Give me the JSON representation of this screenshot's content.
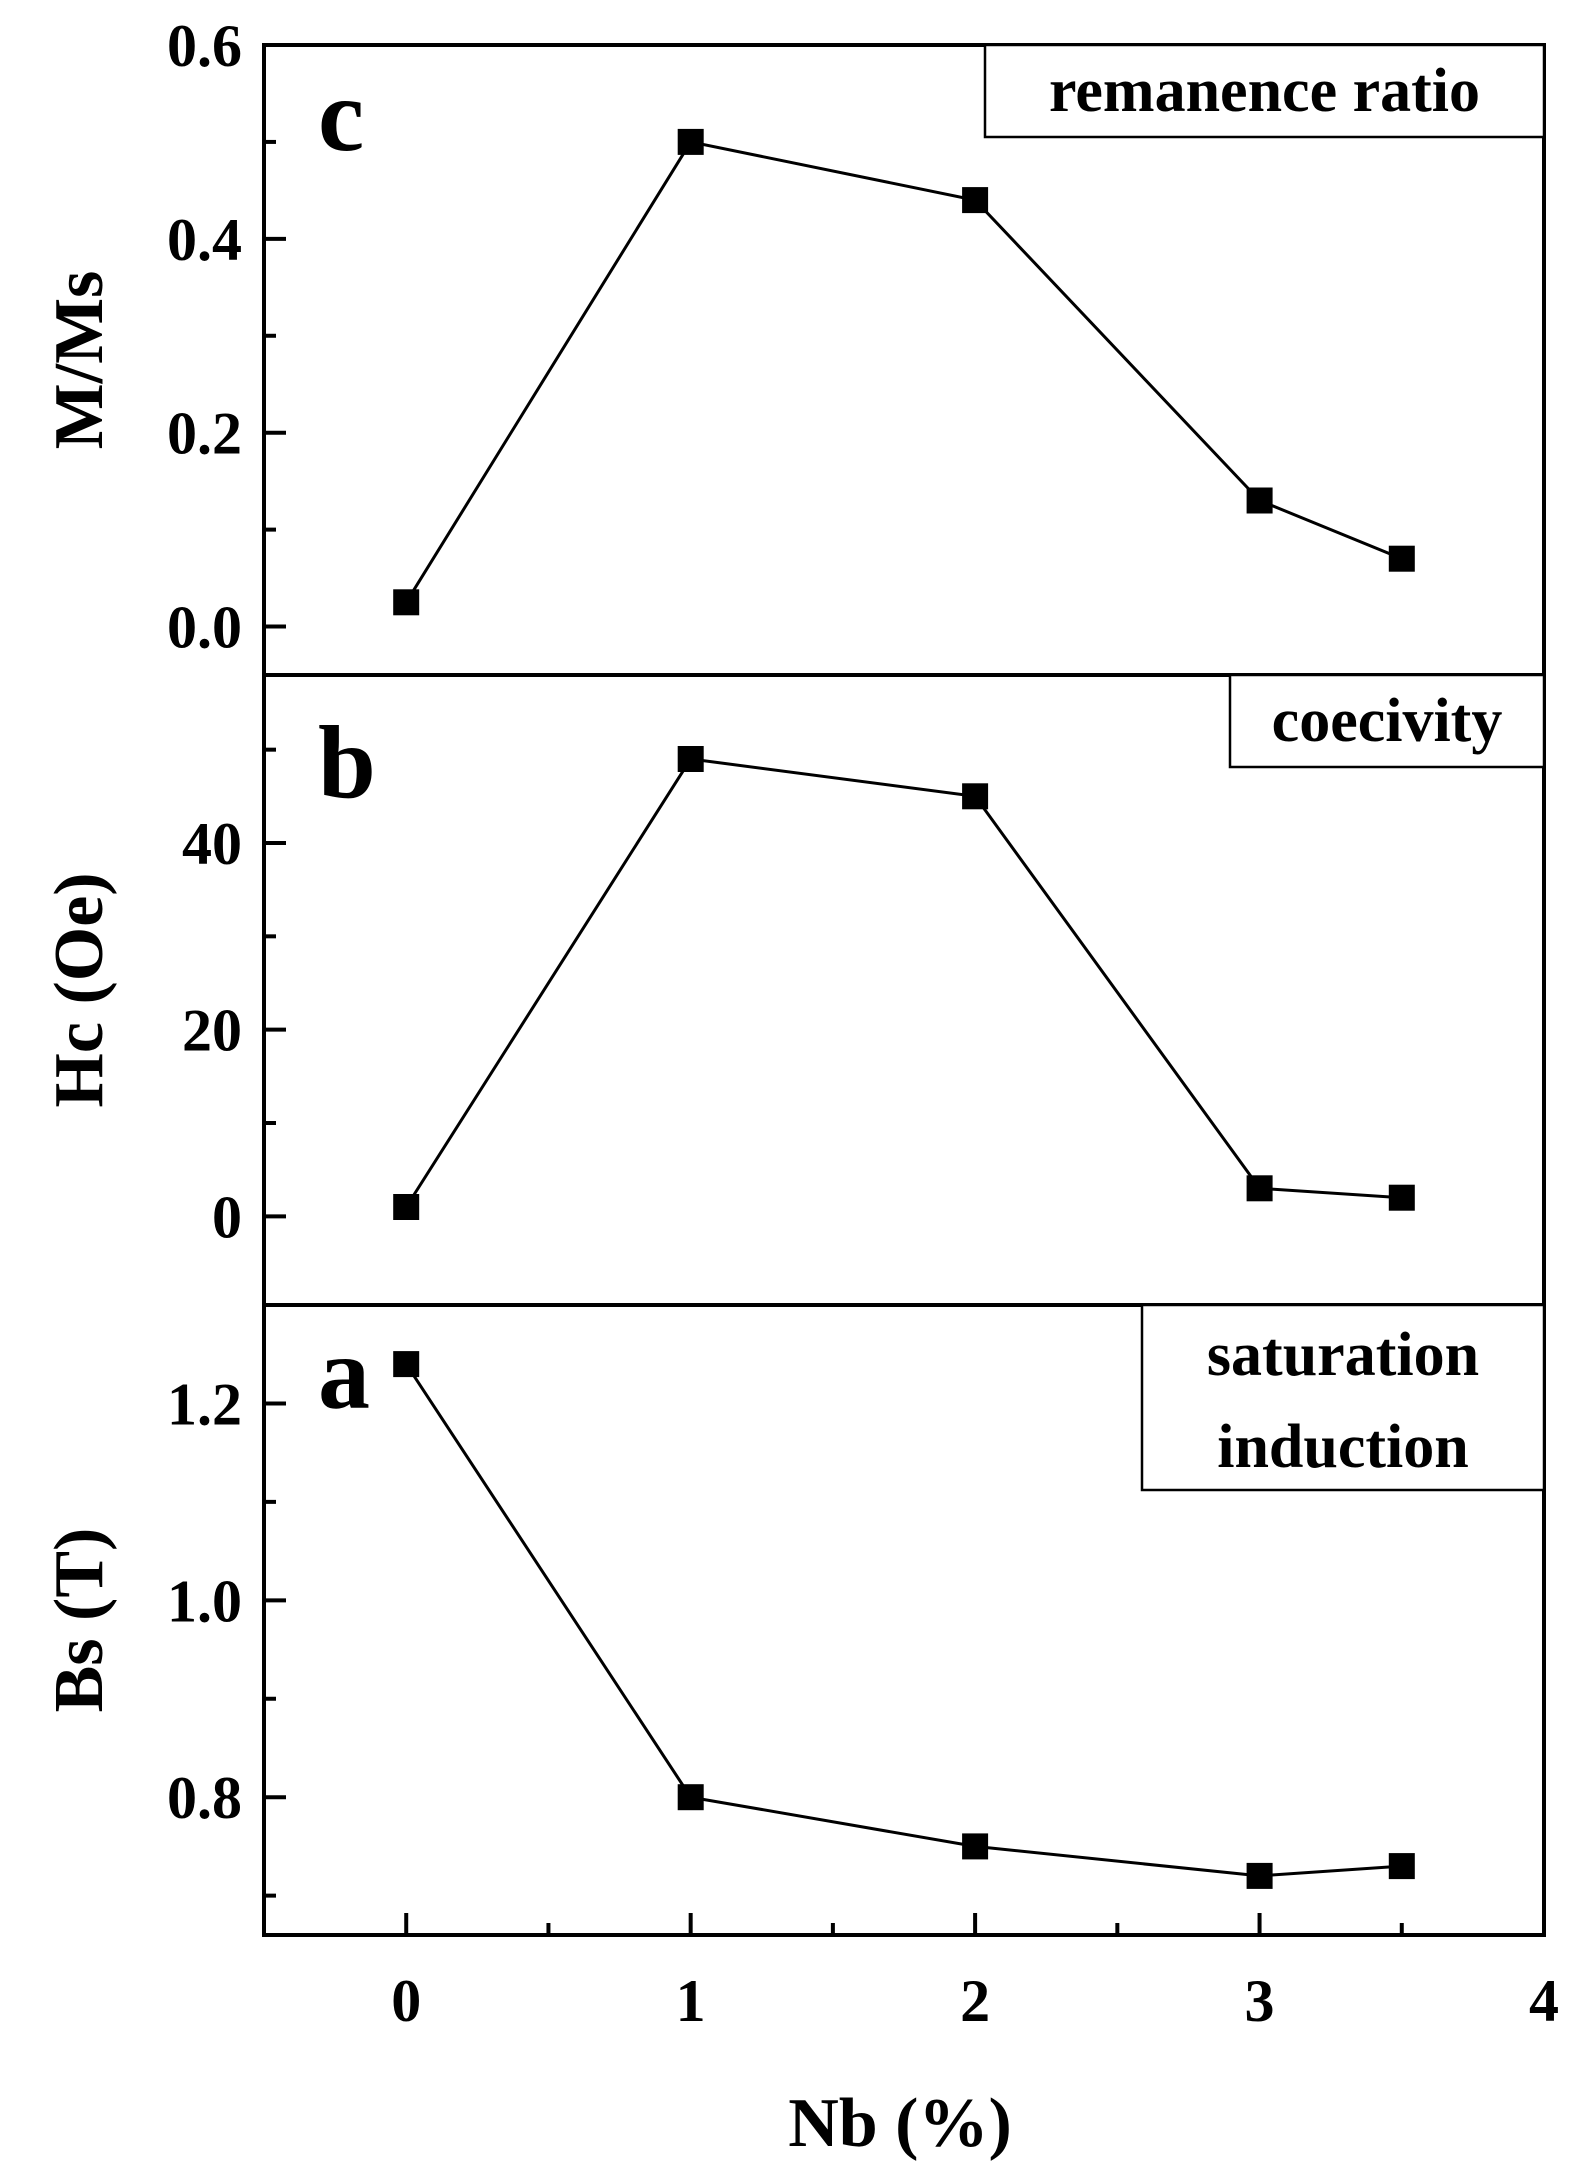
{
  "figure": {
    "xlabel": "Nb (%)",
    "xlim": [
      -0.5,
      4
    ],
    "xticks": [
      0,
      1,
      2,
      3,
      4
    ],
    "xtick_labels": [
      "0",
      "1",
      "2",
      "3",
      "4"
    ]
  },
  "chart_data": [
    {
      "id": "c",
      "type": "line",
      "panel_letter": "c",
      "legend_lines": [
        "remanence ratio"
      ],
      "ylabel": "M/Ms",
      "ylim": [
        -0.05,
        0.6
      ],
      "yticks": [
        0.0,
        0.2,
        0.4,
        0.6
      ],
      "ytick_labels": [
        "0.0",
        "0.2",
        "0.4",
        "0.6"
      ],
      "series": [
        {
          "name": "remanence ratio",
          "x": [
            0,
            1,
            2,
            3,
            3.5
          ],
          "y": [
            0.025,
            0.5,
            0.44,
            0.13,
            0.07
          ]
        }
      ]
    },
    {
      "id": "b",
      "type": "line",
      "panel_letter": "b",
      "legend_lines": [
        "coecivity"
      ],
      "ylabel": "Hc (Oe)",
      "ylim": [
        -9.5,
        58
      ],
      "yticks": [
        0,
        20,
        40
      ],
      "ytick_labels": [
        "0",
        "20",
        "40"
      ],
      "series": [
        {
          "name": "coecivity",
          "x": [
            0,
            1,
            2,
            3,
            3.5
          ],
          "y": [
            1,
            49,
            45,
            3,
            2
          ]
        }
      ]
    },
    {
      "id": "a",
      "type": "line",
      "panel_letter": "a",
      "legend_lines": [
        "saturation",
        "induction"
      ],
      "ylabel": "Bs (T)",
      "ylim": [
        0.66,
        1.3
      ],
      "yticks": [
        0.8,
        1.0,
        1.2
      ],
      "ytick_labels": [
        "0.8",
        "1.0",
        "1.2"
      ],
      "series": [
        {
          "name": "saturation induction",
          "x": [
            0,
            1,
            2,
            3,
            3.5
          ],
          "y": [
            1.24,
            0.8,
            0.75,
            0.72,
            0.73
          ]
        }
      ]
    }
  ]
}
